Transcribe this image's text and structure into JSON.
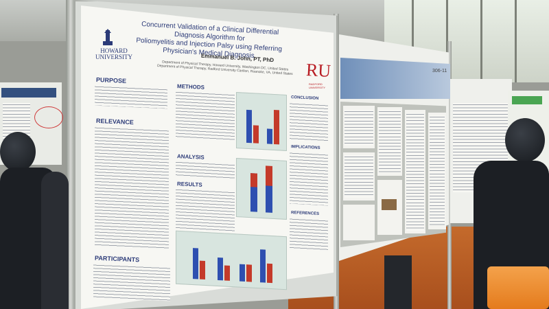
{
  "poster": {
    "title_line1": "Concurrent Validation of a Clinical Differential Diagnosis Algorithm for",
    "title_line2": "Poliomyelitis and Injection Palsy using Referring Physician's Medical Diagnosis",
    "author": "Emmanuel B. John, PT, PhD",
    "affiliation_1": "Department of Physical Therapy, Howard University, Washington DC, United States",
    "affiliation_2": "Department of Physical Therapy, Radford University Carilion, Roanoke, VA, United States",
    "logo_left_line1": "HOWARD",
    "logo_left_line2": "UNIVERSITY",
    "logo_right": "RU",
    "logo_right_sub": "RADFORD UNIVERSITY",
    "sections": {
      "purpose": "PURPOSE",
      "relevance": "RELEVANCE",
      "participants": "PARTICIPANTS",
      "methods": "METHODS",
      "analysis": "ANALYSIS",
      "results": "RESULTS",
      "conclusion": "CONCLUSION",
      "implications": "IMPLICATIONS",
      "references": "REFERENCES"
    }
  },
  "right_poster": {
    "number": "306-11"
  },
  "colors": {
    "title_blue": "#2c3b78",
    "bar_blue": "#2e4fb0",
    "bar_red": "#c43a2a",
    "chart_bg": "#d8e5df",
    "floor": "#c46a2c"
  }
}
